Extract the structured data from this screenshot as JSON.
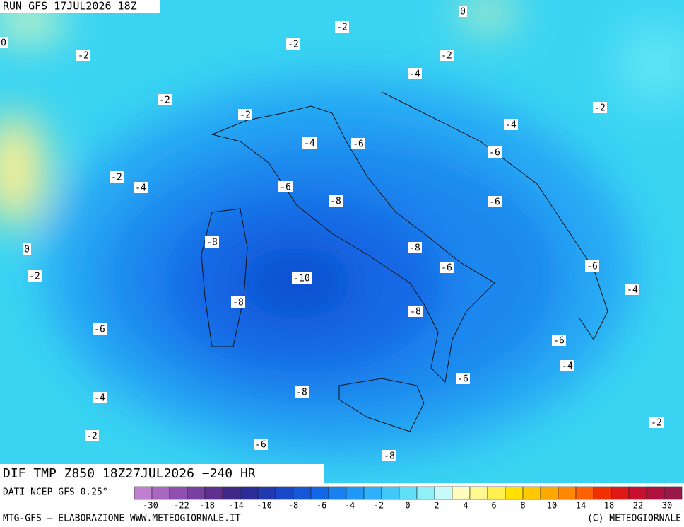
{
  "header": {
    "run": "RUN GFS 17JUL2026 18Z"
  },
  "title": "DIF TMP Z850 18Z27JUL2026 −240 HR",
  "source": "DATI NCEP GFS 0.25°",
  "footer_left": "MTG-GFS — ELABORAZIONE WWW.METEOGIORNALE.IT",
  "footer_right": "(C) METEOGIORNALE",
  "contour_labels": [
    -2,
    0,
    -2,
    -2,
    0,
    -2,
    -4,
    -2,
    -2,
    -2,
    -4,
    -4,
    -6,
    -6,
    -2,
    -4,
    -6,
    -8,
    -6,
    -8,
    0,
    -8,
    -6,
    -6,
    -2,
    -10,
    -4,
    -8,
    -8,
    -6,
    -6,
    -4,
    -6,
    -8,
    -4,
    -2,
    -2,
    -6,
    -8
  ],
  "colorbar": {
    "colors": [
      "#c080d0",
      "#a868c0",
      "#9050b0",
      "#7840a0",
      "#603090",
      "#402888",
      "#2c2c98",
      "#2038b0",
      "#1848c8",
      "#1458d8",
      "#1068e8",
      "#1880f0",
      "#2098f8",
      "#30b0f8",
      "#40c8f8",
      "#60e0f8",
      "#90f0f8",
      "#c8fcfc",
      "#fffcc0",
      "#fff890",
      "#fff050",
      "#ffe000",
      "#ffc800",
      "#ffa800",
      "#ff8800",
      "#ff6000",
      "#f03000",
      "#e01818",
      "#c81030",
      "#b01040",
      "#981848"
    ],
    "ticks": [
      -30,
      -22,
      -18,
      -14,
      -10,
      -8,
      -6,
      -4,
      -2,
      0,
      2,
      4,
      6,
      8,
      10,
      14,
      18,
      22,
      30
    ]
  }
}
